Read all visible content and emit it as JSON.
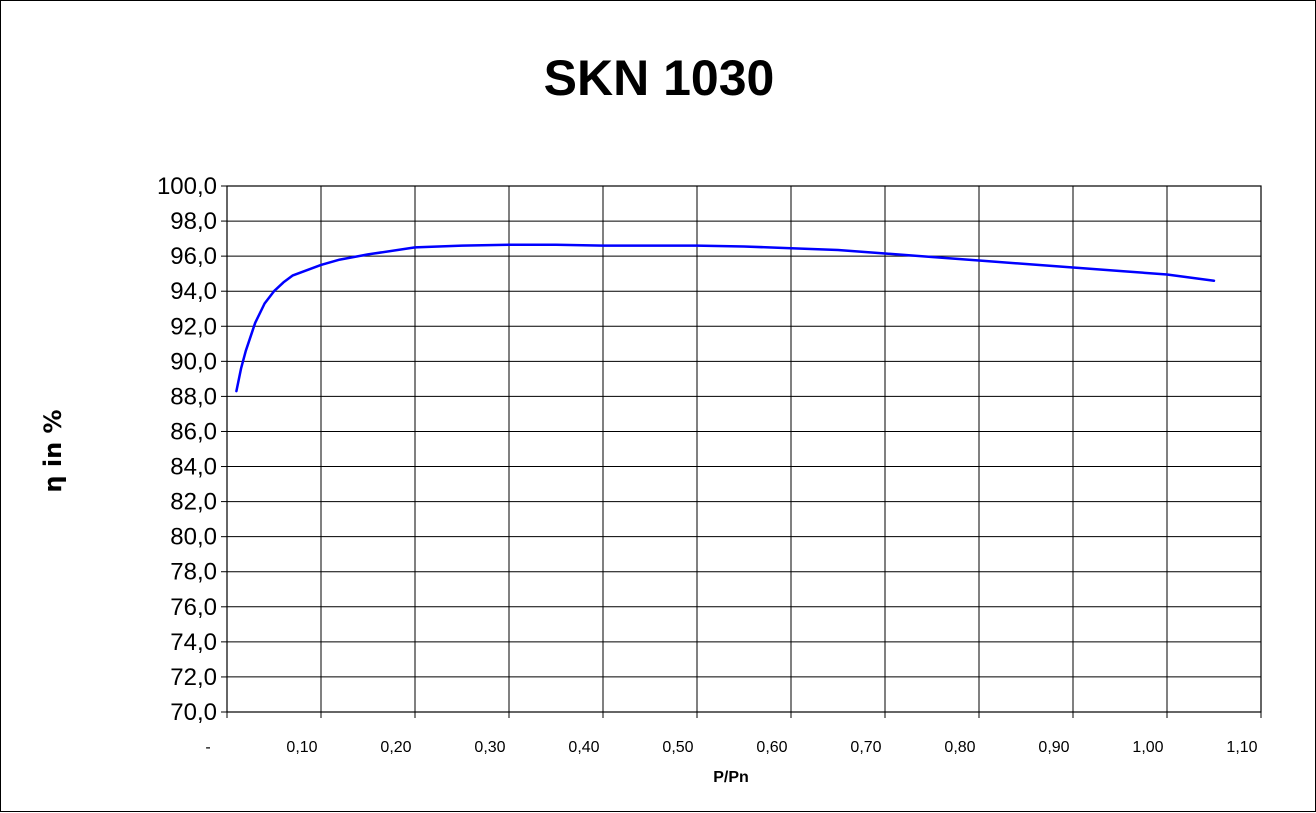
{
  "chart_data": {
    "type": "line",
    "title": "SKN 1030",
    "xlabel": "P/Pn",
    "ylabel": "η in %",
    "xlim": [
      0,
      1.1
    ],
    "ylim": [
      70,
      100
    ],
    "x_ticks": [
      0,
      0.1,
      0.2,
      0.3,
      0.4,
      0.5,
      0.6,
      0.7,
      0.8,
      0.9,
      1.0,
      1.1
    ],
    "x_tick_labels": [
      "-",
      "0,10",
      "0,20",
      "0,30",
      "0,40",
      "0,50",
      "0,60",
      "0,70",
      "0,80",
      "0,90",
      "1,00",
      "1,10"
    ],
    "y_ticks": [
      70,
      72,
      74,
      76,
      78,
      80,
      82,
      84,
      86,
      88,
      90,
      92,
      94,
      96,
      98,
      100
    ],
    "y_tick_labels": [
      "70,0",
      "72,0",
      "74,0",
      "76,0",
      "78,0",
      "80,0",
      "82,0",
      "84,0",
      "86,0",
      "88,0",
      "90,0",
      "92,0",
      "94,0",
      "96,0",
      "98,0",
      "100,0"
    ],
    "grid": true,
    "legend": "none",
    "series": [
      {
        "color": "#0000ff",
        "x": [
          0.01,
          0.015,
          0.02,
          0.03,
          0.04,
          0.05,
          0.06,
          0.07,
          0.08,
          0.1,
          0.12,
          0.15,
          0.2,
          0.25,
          0.3,
          0.35,
          0.4,
          0.45,
          0.5,
          0.55,
          0.6,
          0.65,
          0.7,
          0.75,
          0.8,
          0.85,
          0.9,
          0.95,
          1.0,
          1.05
        ],
        "y": [
          88.3,
          89.6,
          90.6,
          92.2,
          93.3,
          94.0,
          94.5,
          94.9,
          95.1,
          95.5,
          95.8,
          96.1,
          96.5,
          96.6,
          96.65,
          96.65,
          96.6,
          96.6,
          96.6,
          96.55,
          96.45,
          96.35,
          96.15,
          95.95,
          95.75,
          95.55,
          95.35,
          95.15,
          94.95,
          94.6
        ]
      }
    ]
  }
}
